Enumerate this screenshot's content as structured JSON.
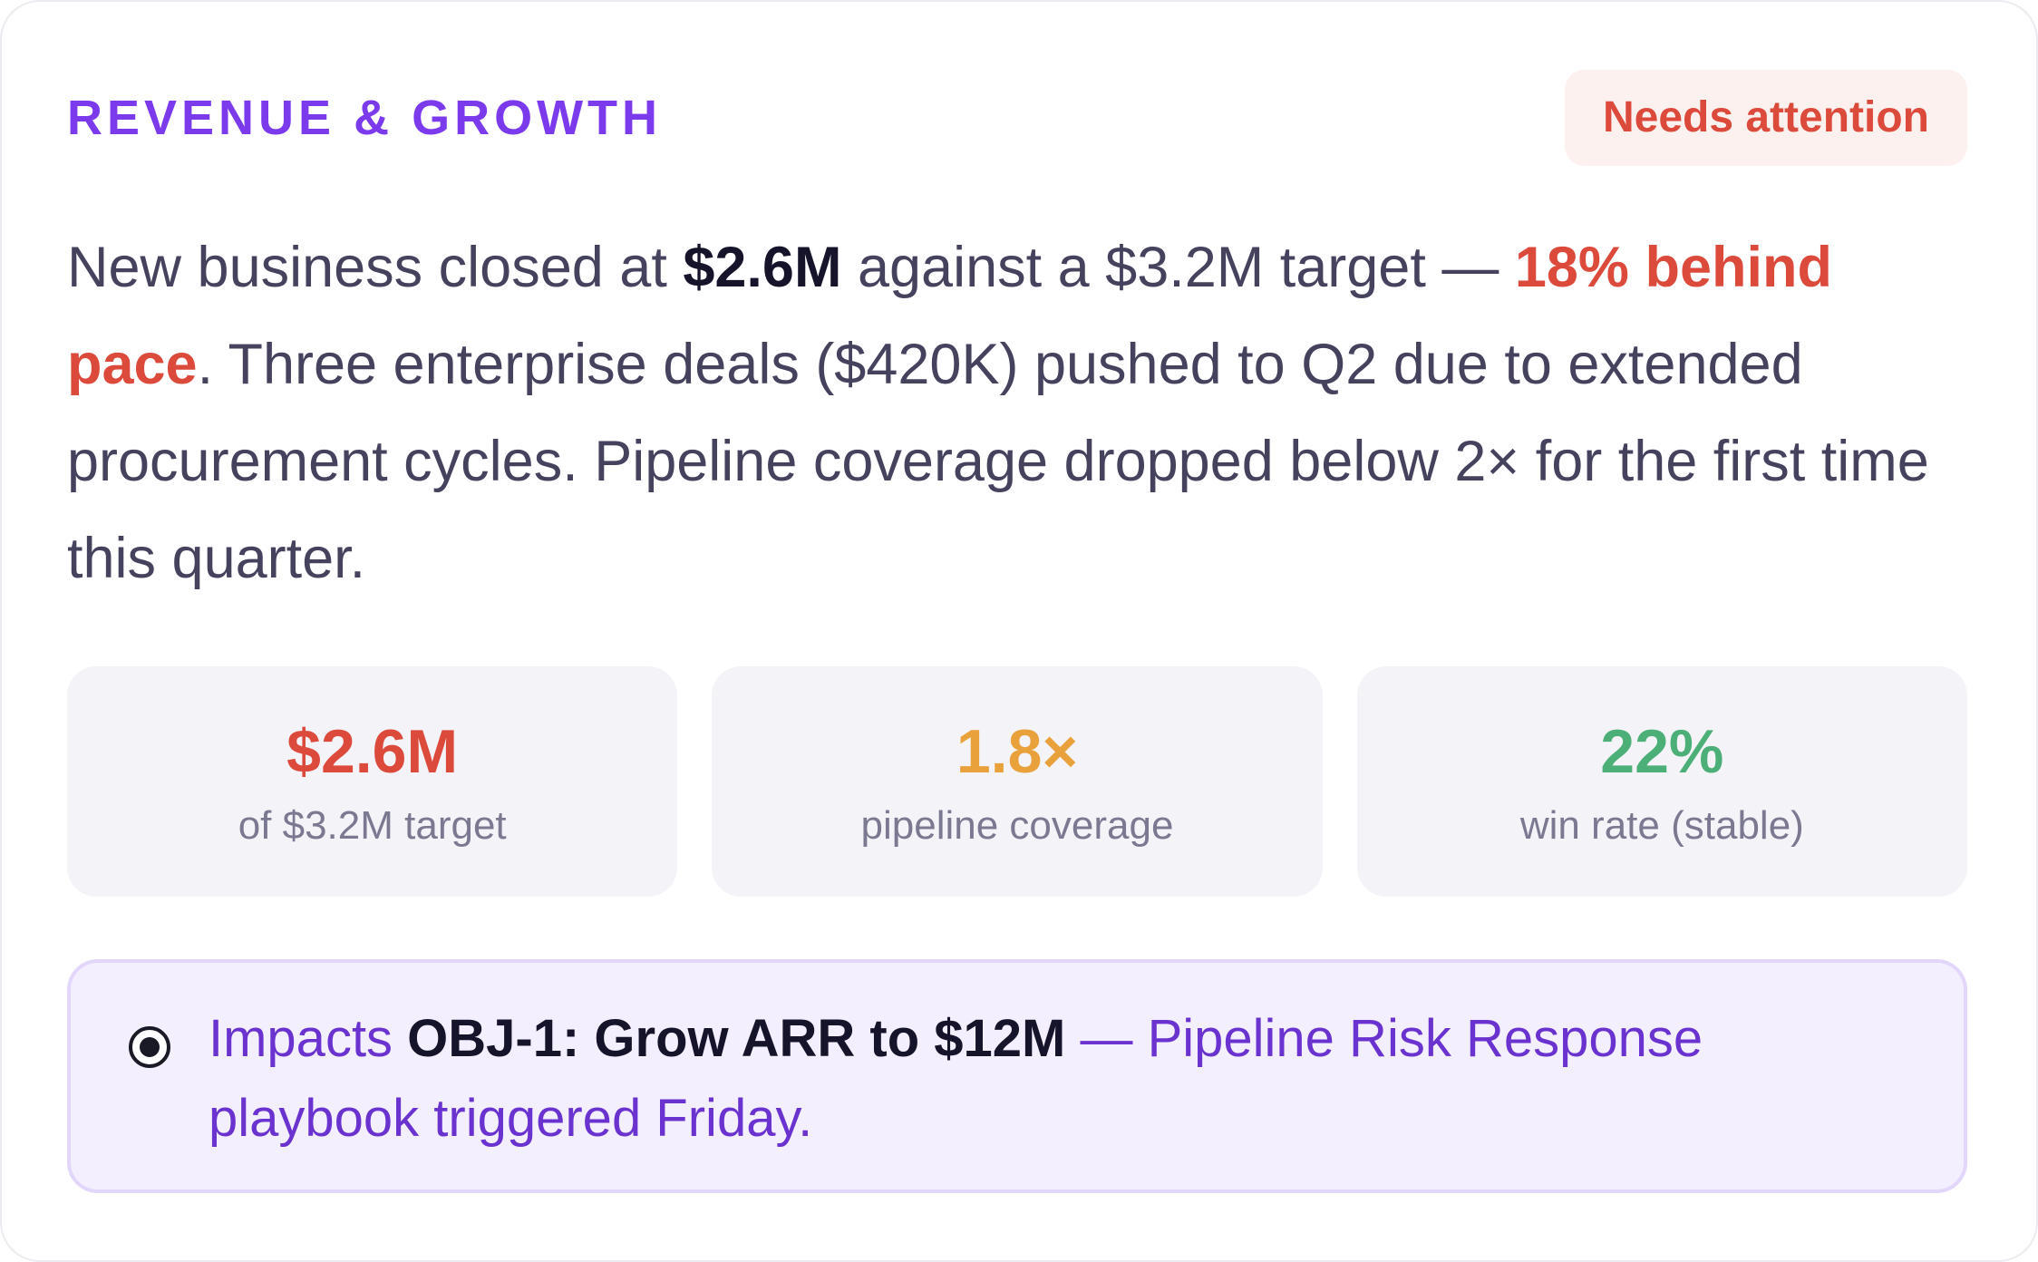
{
  "section": {
    "label": "REVENUE & GROWTH",
    "status": "Needs attention"
  },
  "summary": {
    "t1": "New business closed at ",
    "closed": "$2.6M",
    "t2": " against a $3.2M target — ",
    "behind": "18% behind pace",
    "t3": ". Three enterprise deals ($420K) pushed to Q2 due to extended procurement cycles. Pipeline coverage dropped below 2× for the first time this quarter."
  },
  "metrics": [
    {
      "value": "$2.6M",
      "caption": "of $3.2M target",
      "color": "#dc4a3c"
    },
    {
      "value": "1.8×",
      "caption": "pipeline coverage",
      "color": "#e9a13b"
    },
    {
      "value": "22%",
      "caption": "win rate (stable)",
      "color": "#4caf78"
    }
  ],
  "impact": {
    "icon": "radio-target-icon",
    "prefix": "Impacts ",
    "objective": "OBJ-1: Grow ARR to $12M",
    "suffix": " — Pipeline Risk Response playbook triggered Friday."
  },
  "colors": {
    "accent": "#7c3aed",
    "alert": "#dc4a3c",
    "warning": "#e9a13b",
    "success": "#4caf78"
  }
}
